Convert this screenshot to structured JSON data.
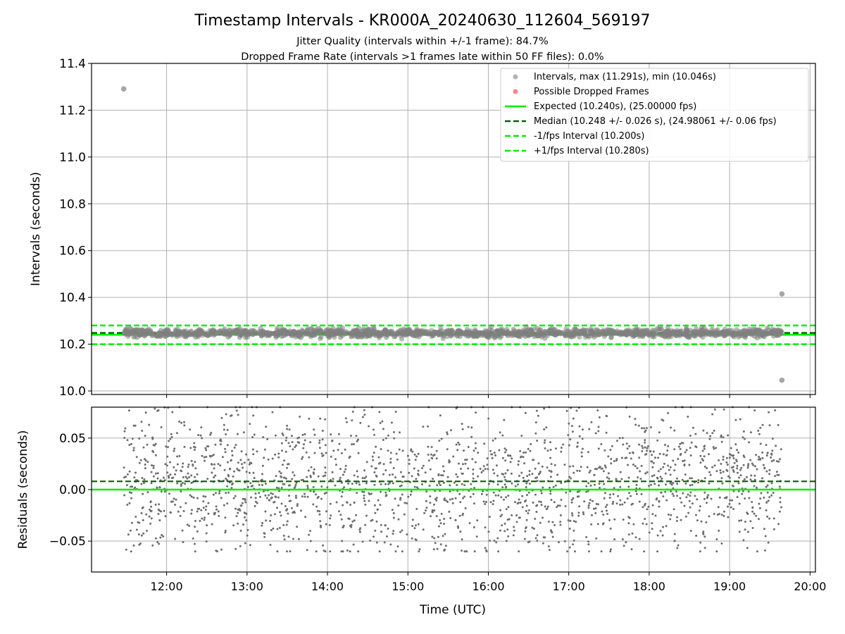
{
  "title": "Timestamp Intervals - KR000A_20240630_112604_569197",
  "subtitle_lines": [
    "Jitter Quality (intervals within +/-1 frame): 84.7%",
    "Dropped Frame Rate (intervals >1 frames late within 50 FF files): 0.0%"
  ],
  "colors": {
    "points": "#808080",
    "dropped": "#ff3333",
    "expected": "#00ee00",
    "median": "#006400",
    "fps_bounds": "#00ee00",
    "grid": "#b0b0b0"
  },
  "chart_data": [
    {
      "type": "scatter",
      "ylabel": "Intervals (seconds)",
      "xlim": [
        "11:04",
        "20:04"
      ],
      "ylim": [
        9.985,
        11.4
      ],
      "yticks": [
        "10.0",
        "10.2",
        "10.4",
        "10.6",
        "10.8",
        "11.0",
        "11.2",
        "11.4"
      ],
      "grid": true,
      "legend_position": "top-right",
      "legend": [
        {
          "label": "Intervals, max (11.291s), min (10.046s)",
          "marker": "circle",
          "color": "#808080"
        },
        {
          "label": "Possible Dropped Frames",
          "marker": "circle",
          "color": "#ff3333"
        },
        {
          "label": "Expected (10.240s), (25.00000 fps)",
          "line": "solid",
          "color": "#00ee00"
        },
        {
          "label": "Median (10.248 +/- 0.026 s), (24.98061 +/- 0.06 fps)",
          "line": "dashed",
          "color": "#006400"
        },
        {
          "label": "-1/fps Interval (10.200s)",
          "line": "dashed",
          "color": "#00ee00"
        },
        {
          "label": "+1/fps Interval (10.280s)",
          "line": "dashed",
          "color": "#00ee00"
        }
      ],
      "reference_lines": {
        "expected": 10.24,
        "median": 10.248,
        "minus_1_fps": 10.2,
        "plus_1_fps": 10.28
      },
      "series": [
        {
          "name": "Intervals",
          "time_range": [
            "11:28",
            "19:39"
          ],
          "band": {
            "center": 10.248,
            "spread": 0.026,
            "min": 10.18,
            "max": 10.32
          },
          "outliers": [
            {
              "x": "11:28",
              "y": 11.291
            },
            {
              "x": "19:39",
              "y": 10.415
            },
            {
              "x": "19:39",
              "y": 10.046
            }
          ]
        }
      ]
    },
    {
      "type": "scatter",
      "ylabel": "Residuals (seconds)",
      "xlabel": "Time (UTC)",
      "xlim": [
        "11:04",
        "20:04"
      ],
      "xticks": [
        "12:00",
        "13:00",
        "14:00",
        "15:00",
        "16:00",
        "17:00",
        "18:00",
        "19:00",
        "20:00"
      ],
      "ylim": [
        -0.08,
        0.08
      ],
      "yticks": [
        "−0.05",
        "0.00",
        "0.05"
      ],
      "grid": true,
      "reference_lines": {
        "zero": 0.0,
        "median_offset": 0.008
      },
      "series": [
        {
          "name": "Residuals",
          "time_range": [
            "11:28",
            "19:39"
          ],
          "range": [
            -0.06,
            0.08
          ],
          "approx_count": 2000
        }
      ]
    }
  ]
}
